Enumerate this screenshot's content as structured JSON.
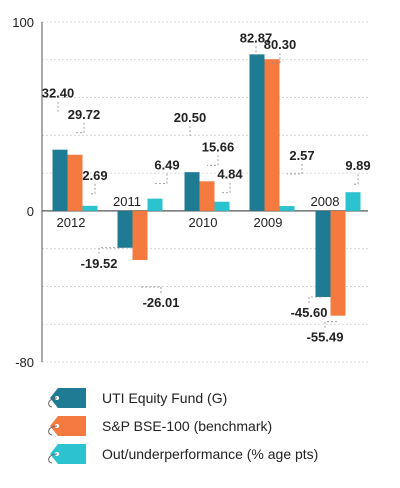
{
  "chart_data": {
    "type": "bar",
    "title": "",
    "xlabel": "",
    "ylabel": "",
    "ylim": [
      -80,
      100
    ],
    "yticks": [
      100,
      0,
      -80
    ],
    "gridlines": [
      100,
      80,
      60,
      40,
      20,
      0,
      -20,
      -40,
      -60,
      -80
    ],
    "grid": true,
    "categories": [
      "2012",
      "2011",
      "2010",
      "2009",
      "2008"
    ],
    "series": [
      {
        "name": "UTI Equity Fund (G)",
        "color": "#1f7a94",
        "values": [
          32.4,
          -19.52,
          20.5,
          82.87,
          -45.6
        ],
        "labels": [
          "32.40",
          "-19.52",
          "20.50",
          "82.87",
          "-45.60"
        ]
      },
      {
        "name": "S&P BSE-100 (benchmark)",
        "color": "#f47a40",
        "values": [
          29.72,
          -26.01,
          15.66,
          80.3,
          -55.49
        ],
        "labels": [
          "29.72",
          "-26.01",
          "15.66",
          "80.30",
          "-55.49"
        ]
      },
      {
        "name": "Out/underperformance (% age pts)",
        "color": "#2cc3d0",
        "values": [
          2.69,
          6.49,
          4.84,
          2.57,
          9.89
        ],
        "labels": [
          "2.69",
          "6.49",
          "4.84",
          "2.57",
          "9.89"
        ]
      }
    ],
    "legend_position": "bottom-left"
  }
}
